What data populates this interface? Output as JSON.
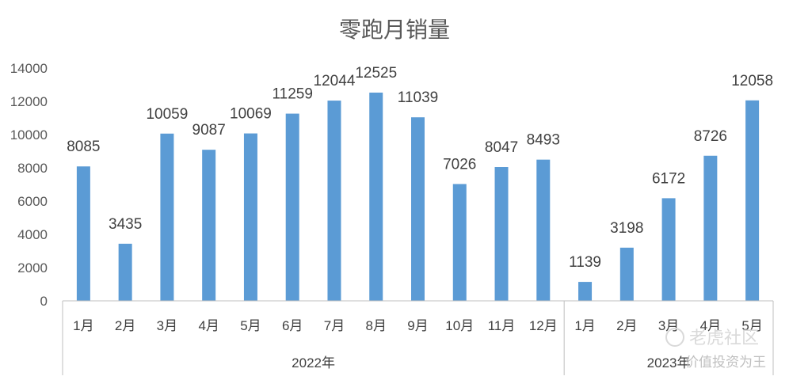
{
  "chart_data": {
    "type": "bar",
    "title": "零跑月销量",
    "xlabel": "",
    "ylabel": "",
    "ylim": [
      0,
      14000
    ],
    "yticks": [
      0,
      2000,
      4000,
      6000,
      8000,
      10000,
      12000,
      14000
    ],
    "grid": false,
    "legend": "none",
    "bar_color": "#5b9bd5",
    "categories": [
      "1月",
      "2月",
      "3月",
      "4月",
      "5月",
      "6月",
      "7月",
      "8月",
      "9月",
      "10月",
      "11月",
      "12月",
      "1月",
      "2月",
      "3月",
      "4月",
      "5月"
    ],
    "groups": [
      {
        "label": "2022年",
        "count": 12
      },
      {
        "label": "2023年",
        "count": 5
      }
    ],
    "values": [
      8085,
      3435,
      10059,
      9087,
      10069,
      11259,
      12044,
      12525,
      11039,
      7026,
      8047,
      8493,
      1139,
      3198,
      6172,
      8726,
      12058
    ]
  },
  "watermark": {
    "logo_text": "老虎社区",
    "sub_text": "价值投资为王"
  }
}
